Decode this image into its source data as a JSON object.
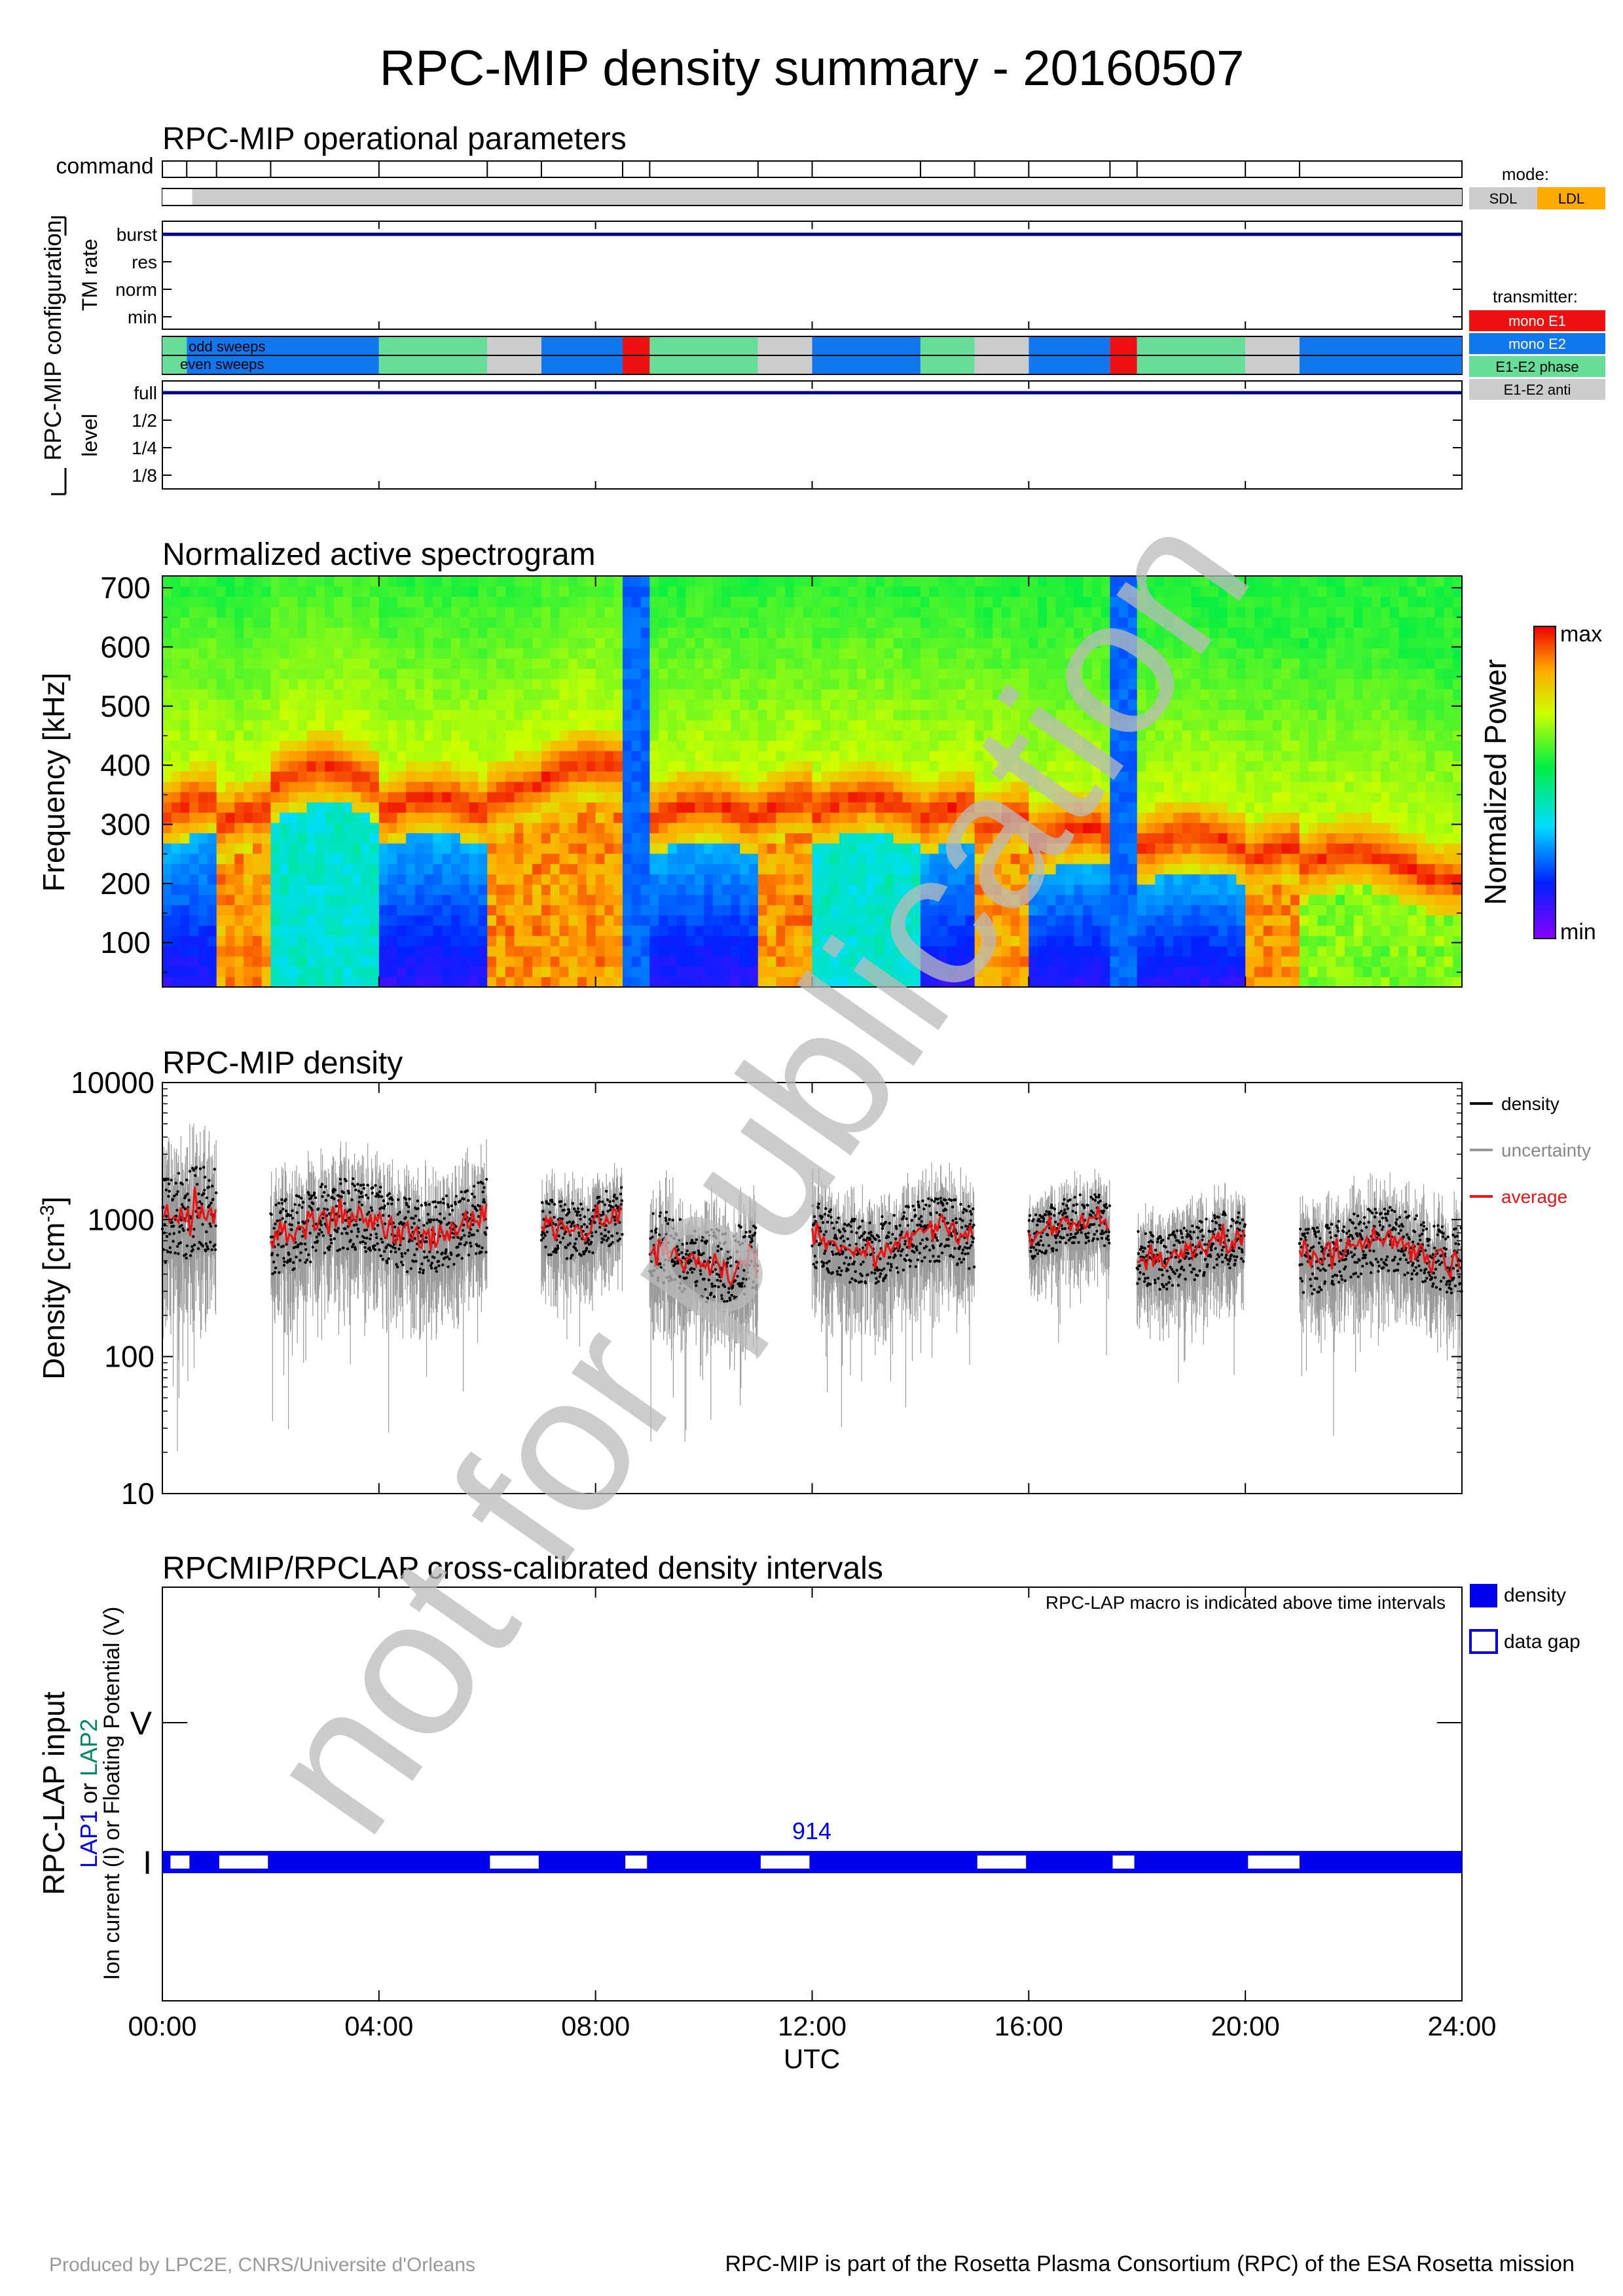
{
  "title": "RPC-MIP density summary - 20160507",
  "footer": {
    "left": "Produced by LPC2E, CNRS/Universite d'Orleans",
    "right": "RPC-MIP is part of the Rosetta Plasma Consortium (RPC) of the ESA Rosetta mission"
  },
  "watermark": "not for publication",
  "x_axis": {
    "label": "UTC",
    "ticks": [
      "00:00",
      "04:00",
      "08:00",
      "12:00",
      "16:00",
      "20:00",
      "24:00"
    ],
    "range_hours": [
      0,
      24
    ]
  },
  "colors": {
    "mono_e1": "#ee1111",
    "mono_e2": "#1177ee",
    "e1e2_phase": "#66dd99",
    "e1e2_anti": "#cccccc",
    "sdl": "#cccccc",
    "ldl": "#ffaa00",
    "density_bar": "#0000ee",
    "average": "#ee1111",
    "uncertainty": "#999999",
    "axis_blue": "#000080",
    "lap1": "#0000ee",
    "lap2": "#008866"
  },
  "chart_data": [
    {
      "type": "table",
      "title": "RPC-MIP operational parameters",
      "command_label": "command",
      "command_hours": [
        0,
        0.45,
        1.0,
        2.0,
        4.0,
        6.0,
        7.0,
        8.5,
        9.0,
        11.0,
        12.0,
        14.0,
        15.0,
        16.0,
        17.5,
        18.0,
        20.0,
        21.0,
        24.0
      ],
      "config_label": "RPC-MIP configuration",
      "mode_legend": {
        "title": "mode:",
        "items": [
          "SDL",
          "LDL"
        ]
      },
      "mode_segments": [
        {
          "start": 0,
          "end": 0.12,
          "mode": "none"
        },
        {
          "start": 0.12,
          "end": 0.55,
          "mode": "none"
        },
        {
          "start": 0.55,
          "end": 24,
          "mode": "SDL"
        }
      ],
      "tm_rate": {
        "label": "TM rate",
        "levels": [
          "burst",
          "res",
          "norm",
          "min"
        ],
        "value": "burst"
      },
      "transmitter_legend": {
        "title": "transmitter:",
        "items": [
          "mono E1",
          "mono E2",
          "E1-E2 phase",
          "E1-E2 anti"
        ]
      },
      "sweep_labels": [
        "odd sweeps",
        "even sweeps"
      ],
      "transmitter_segments": [
        {
          "start": 0,
          "end": 0.45,
          "mode": "E1-E2 phase"
        },
        {
          "start": 0.45,
          "end": 4.0,
          "mode": "mono E2"
        },
        {
          "start": 4.0,
          "end": 6.0,
          "mode": "E1-E2 phase"
        },
        {
          "start": 6.0,
          "end": 7.0,
          "mode": "E1-E2 anti"
        },
        {
          "start": 7.0,
          "end": 8.5,
          "mode": "mono E2"
        },
        {
          "start": 8.5,
          "end": 9.0,
          "mode": "mono E1"
        },
        {
          "start": 9.0,
          "end": 11.0,
          "mode": "E1-E2 phase"
        },
        {
          "start": 11.0,
          "end": 12.0,
          "mode": "E1-E2 anti"
        },
        {
          "start": 12.0,
          "end": 14.0,
          "mode": "mono E2"
        },
        {
          "start": 14.0,
          "end": 15.0,
          "mode": "E1-E2 phase"
        },
        {
          "start": 15.0,
          "end": 16.0,
          "mode": "E1-E2 anti"
        },
        {
          "start": 16.0,
          "end": 17.5,
          "mode": "mono E2"
        },
        {
          "start": 17.5,
          "end": 18.0,
          "mode": "mono E1"
        },
        {
          "start": 18.0,
          "end": 20.0,
          "mode": "E1-E2 phase"
        },
        {
          "start": 20.0,
          "end": 21.0,
          "mode": "E1-E2 anti"
        },
        {
          "start": 21.0,
          "end": 24.0,
          "mode": "mono E2"
        }
      ],
      "level": {
        "label": "level",
        "levels": [
          "full",
          "1/2",
          "1/4",
          "1/8"
        ],
        "value": "full"
      }
    },
    {
      "type": "heatmap",
      "title": "Normalized active spectrogram",
      "ylabel": "Frequency [kHz]",
      "ylim": [
        25,
        720
      ],
      "yticks": [
        100,
        200,
        300,
        400,
        500,
        600,
        700
      ],
      "colorbar": {
        "label": "Normalized Power",
        "min_label": "min",
        "max_label": "max"
      },
      "segments": [
        {
          "start": 0,
          "end": 1.0,
          "style": "blue_low",
          "band_khz": 320
        },
        {
          "start": 1.0,
          "end": 2.0,
          "style": "red_low",
          "band_khz": 300
        },
        {
          "start": 2.0,
          "end": 4.0,
          "style": "cyan_low",
          "band_khz": 370
        },
        {
          "start": 4.0,
          "end": 6.0,
          "style": "blue_low",
          "band_khz": 320
        },
        {
          "start": 6.0,
          "end": 7.0,
          "style": "red_low",
          "band_khz": 340
        },
        {
          "start": 7.0,
          "end": 8.5,
          "style": "red_low",
          "band_khz": 380
        },
        {
          "start": 8.5,
          "end": 9.0,
          "style": "blue_full",
          "band_khz": 0
        },
        {
          "start": 9.0,
          "end": 11.0,
          "style": "blue_low",
          "band_khz": 310
        },
        {
          "start": 11.0,
          "end": 12.0,
          "style": "red_low",
          "band_khz": 320
        },
        {
          "start": 12.0,
          "end": 14.0,
          "style": "cyan_low",
          "band_khz": 320
        },
        {
          "start": 14.0,
          "end": 15.0,
          "style": "blue_low",
          "band_khz": 310
        },
        {
          "start": 15.0,
          "end": 16.0,
          "style": "red_low",
          "band_khz": 290
        },
        {
          "start": 16.0,
          "end": 17.5,
          "style": "blue_low",
          "band_khz": 270
        },
        {
          "start": 17.5,
          "end": 18.0,
          "style": "blue_full",
          "band_khz": 0
        },
        {
          "start": 18.0,
          "end": 20.0,
          "style": "blue_low",
          "band_khz": 260
        },
        {
          "start": 20.0,
          "end": 21.0,
          "style": "red_low",
          "band_khz": 240
        },
        {
          "start": 21.0,
          "end": 24.0,
          "style": "green_mid",
          "band_khz": 230
        }
      ]
    },
    {
      "type": "scatter",
      "title": "RPC-MIP density",
      "ylabel": "Density [cm-3]",
      "yscale": "log",
      "ylim": [
        10,
        10000
      ],
      "yticks": [
        10,
        100,
        1000,
        10000
      ],
      "legend": [
        "density",
        "uncertainty",
        "average"
      ],
      "legend_position": "right",
      "series": [
        {
          "start": 0.0,
          "end": 1.0,
          "avg": 950,
          "spread": 0.55
        },
        {
          "start": 2.0,
          "end": 6.0,
          "avg": 900,
          "spread": 0.45
        },
        {
          "start": 7.0,
          "end": 8.5,
          "avg": 1000,
          "spread": 0.35
        },
        {
          "start": 9.0,
          "end": 11.0,
          "avg": 550,
          "spread": 0.45
        },
        {
          "start": 12.0,
          "end": 15.0,
          "avg": 700,
          "spread": 0.4
        },
        {
          "start": 16.0,
          "end": 17.5,
          "avg": 850,
          "spread": 0.3
        },
        {
          "start": 18.0,
          "end": 20.0,
          "avg": 600,
          "spread": 0.35
        },
        {
          "start": 21.0,
          "end": 24.0,
          "avg": 600,
          "spread": 0.4
        }
      ]
    },
    {
      "type": "bar",
      "title": "RPCMIP/RPCLAP cross-calibrated density intervals",
      "note": "RPC-LAP macro is indicated above time intervals",
      "ylabel_main": "RPC-LAP input",
      "ylabel_lap1": "LAP1",
      "ylabel_or": " or ",
      "ylabel_lap2": "LAP2",
      "ylabel_sub": "Ion current (I) or Floating Potential (V)",
      "rows": [
        "V",
        "I"
      ],
      "macro_label": "914",
      "macro_hour": 12.0,
      "legend": [
        "density",
        "data gap"
      ],
      "density_row": "I",
      "density_interval": [
        0,
        24
      ],
      "gaps": [
        [
          0.15,
          0.5
        ],
        [
          1.05,
          1.95
        ],
        [
          6.05,
          6.95
        ],
        [
          8.55,
          8.95
        ],
        [
          11.05,
          11.95
        ],
        [
          15.05,
          15.95
        ],
        [
          17.55,
          17.95
        ],
        [
          20.05,
          21.0
        ]
      ]
    }
  ]
}
